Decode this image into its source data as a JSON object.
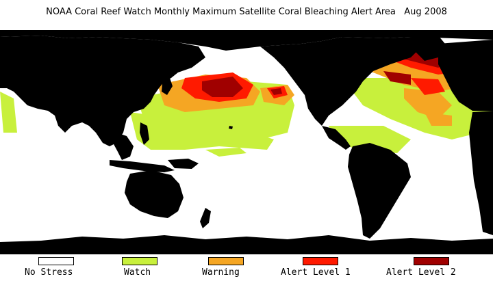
{
  "title": "NOAA Coral Reef Watch Monthly Maximum Satellite Coral Bleaching Alert Area   Aug 2008",
  "colors": {
    "land": "#000000",
    "no_stress": "#ffffff",
    "watch": "#c8f03c",
    "warning": "#f5a623",
    "alert1": "#ff1a00",
    "alert2": "#a00000"
  },
  "legend": [
    {
      "label": "No Stress",
      "color": "#ffffff"
    },
    {
      "label": "Watch",
      "color": "#c8f03c"
    },
    {
      "label": "Warning",
      "color": "#f5a623"
    },
    {
      "label": "Alert Level 1",
      "color": "#ff1a00"
    },
    {
      "label": "Alert Level 2",
      "color": "#a00000"
    }
  ]
}
